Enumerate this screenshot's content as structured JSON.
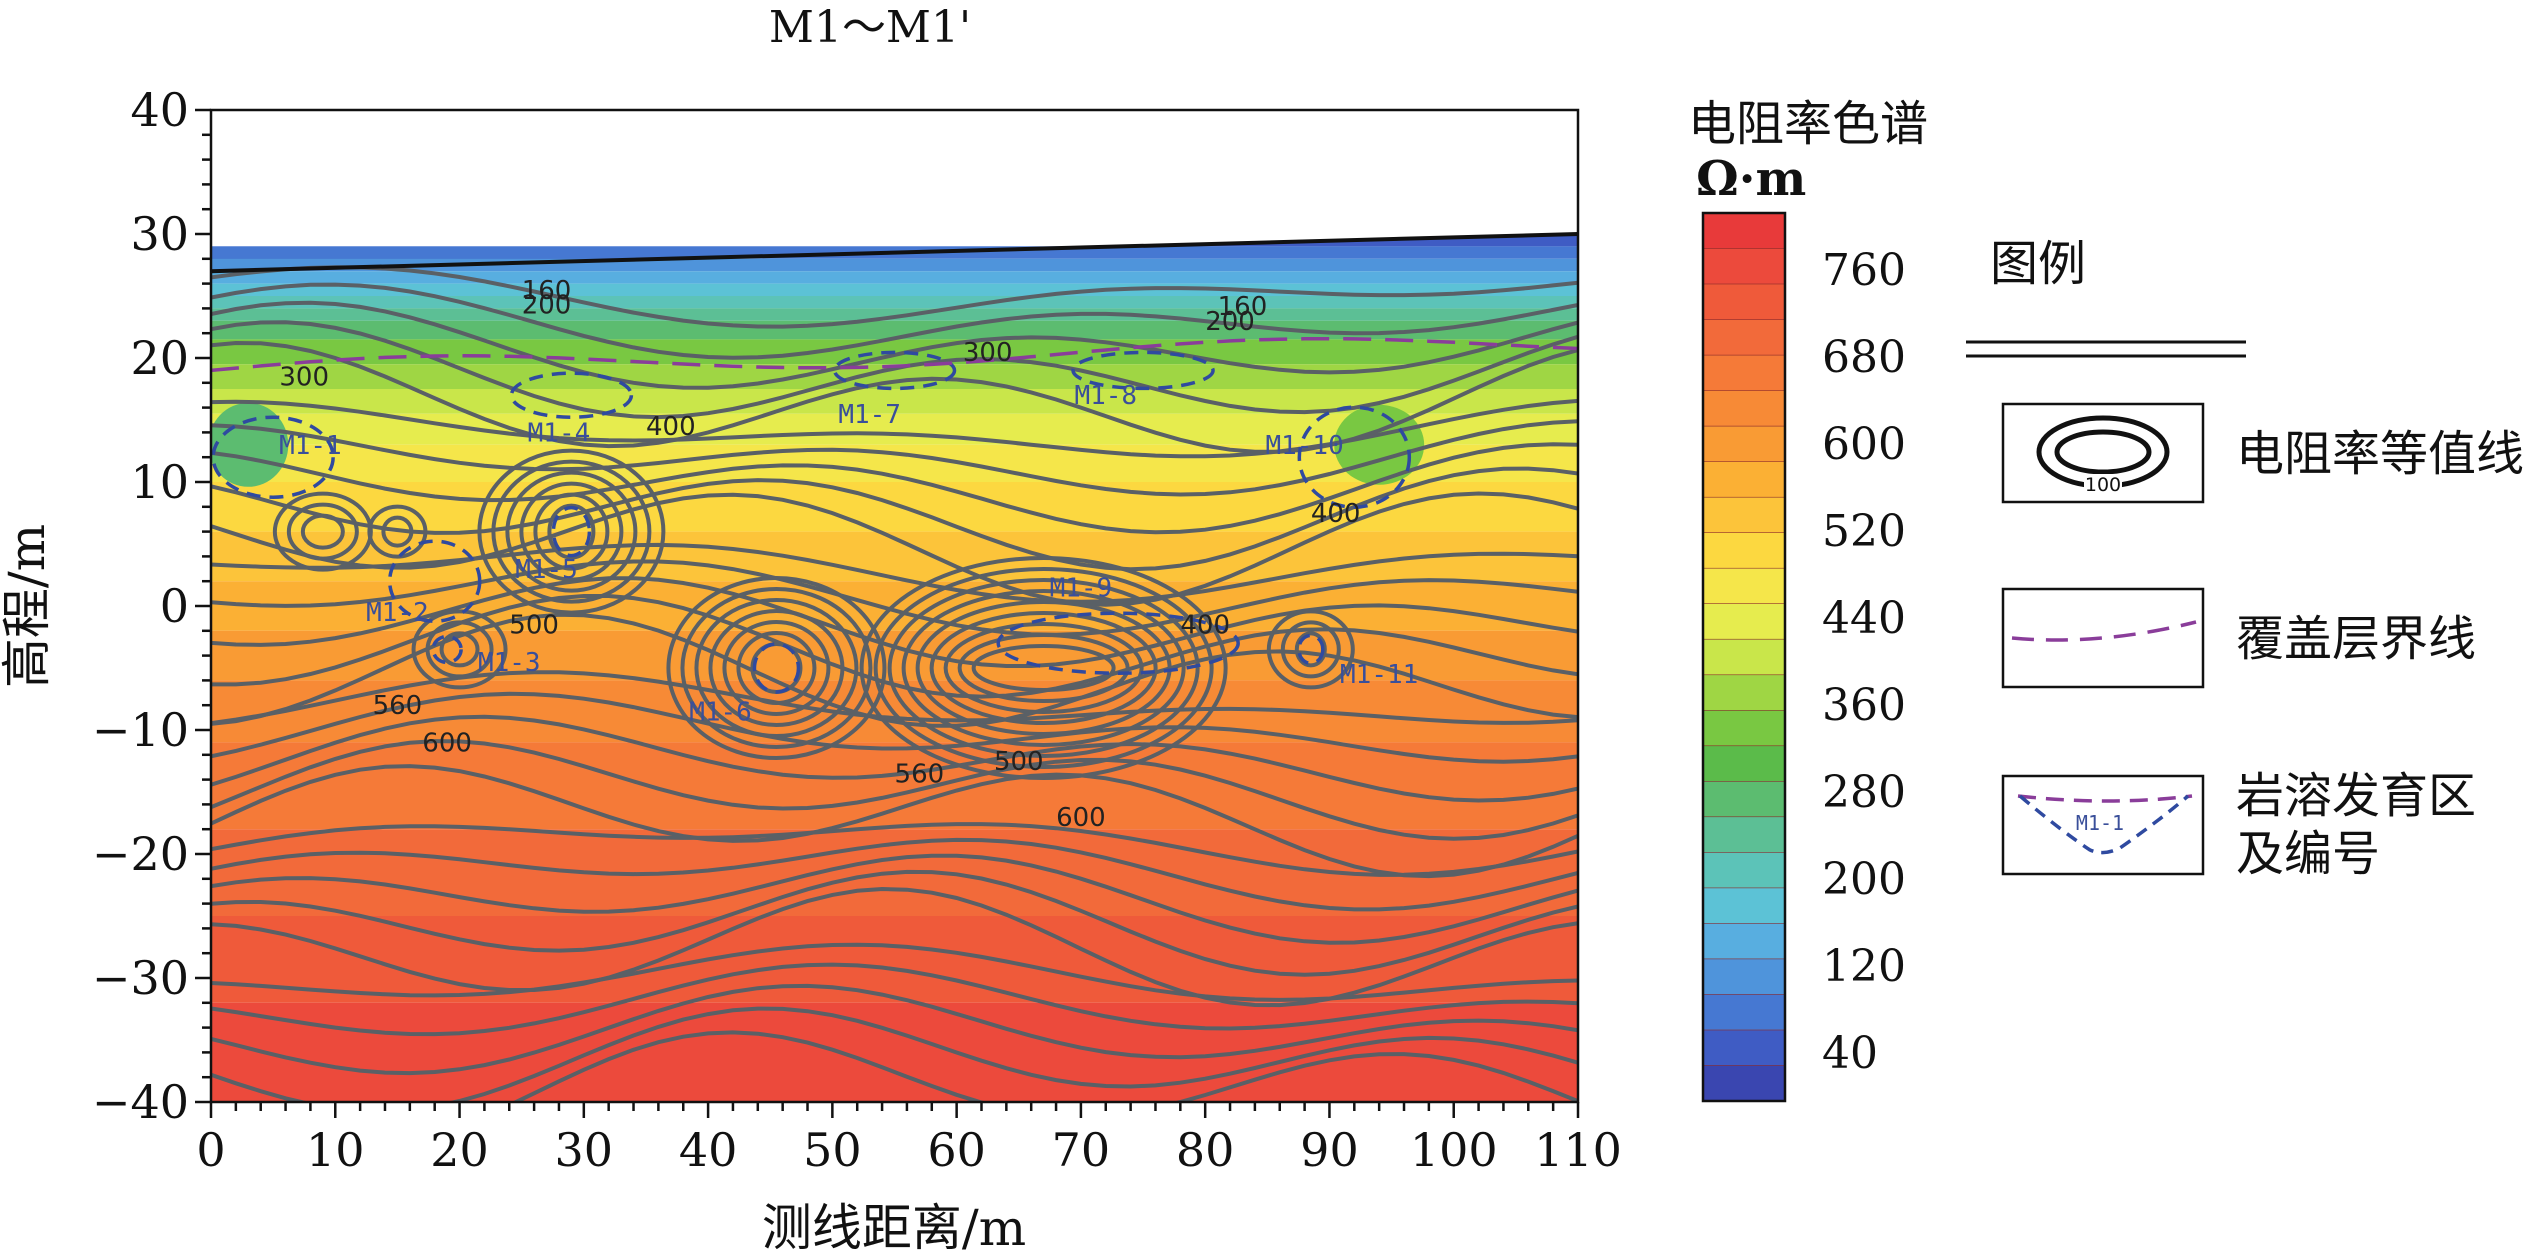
{
  "chart_data": {
    "type": "heatmap",
    "title": "M1～M1'",
    "xlabel": "测线距离/m",
    "ylabel": "高程/m",
    "xlim": [
      0,
      110
    ],
    "ylim": [
      -40,
      40
    ],
    "x_ticks": [
      0,
      10,
      20,
      30,
      40,
      50,
      60,
      70,
      80,
      90,
      100,
      110
    ],
    "y_ticks": [
      40,
      30,
      20,
      10,
      0,
      -10,
      -20,
      -30,
      -40
    ],
    "surface_profile": [
      {
        "x": 0,
        "y": 27
      },
      {
        "x": 110,
        "y": 30
      }
    ],
    "colorbar": {
      "title": "电阻率色谱",
      "unit": "Ω·m",
      "ticks": [
        760,
        680,
        600,
        520,
        440,
        360,
        280,
        200,
        120,
        40
      ],
      "colors": [
        "#e83a3a",
        "#ec4a3c",
        "#ef5a3a",
        "#f26a3a",
        "#f57a38",
        "#f78a36",
        "#f99b34",
        "#fbb034",
        "#fcc43a",
        "#fcd840",
        "#f5e64a",
        "#e6ec4e",
        "#c9e64a",
        "#9fd644",
        "#79c842",
        "#5bbb4a",
        "#5cbc70",
        "#5cbf95",
        "#5cc3b8",
        "#5cc2d6",
        "#58aee0",
        "#4f94db",
        "#4678d2",
        "#3f5cc4",
        "#3a46b0"
      ]
    },
    "contour_labels": [
      {
        "x": 27,
        "y": 25.5,
        "text": "160"
      },
      {
        "x": 27,
        "y": 24.3,
        "text": "200"
      },
      {
        "x": 83,
        "y": 24.2,
        "text": "160"
      },
      {
        "x": 82,
        "y": 23.0,
        "text": "200"
      },
      {
        "x": 7.5,
        "y": 18.5,
        "text": "300"
      },
      {
        "x": 62.5,
        "y": 20.5,
        "text": "300"
      },
      {
        "x": 37,
        "y": 14.5,
        "text": "400"
      },
      {
        "x": 90.5,
        "y": 7.5,
        "text": "400"
      },
      {
        "x": 80,
        "y": -1.5,
        "text": "400"
      },
      {
        "x": 26,
        "y": -1.5,
        "text": "500"
      },
      {
        "x": 65,
        "y": -12.5,
        "text": "500"
      },
      {
        "x": 15,
        "y": -8,
        "text": "560"
      },
      {
        "x": 57,
        "y": -13.5,
        "text": "560"
      },
      {
        "x": 19,
        "y": -11,
        "text": "600"
      },
      {
        "x": 70,
        "y": -17,
        "text": "600"
      }
    ],
    "karst_zones": [
      {
        "label": "M1-1",
        "x": 8,
        "y": 13
      },
      {
        "label": "M1-2",
        "x": 15,
        "y": -0.5
      },
      {
        "label": "M1-3",
        "x": 24,
        "y": -4.5
      },
      {
        "label": "M1-4",
        "x": 28,
        "y": 14
      },
      {
        "label": "M1-5",
        "x": 27,
        "y": 3
      },
      {
        "label": "M1-6",
        "x": 41,
        "y": -8.5
      },
      {
        "label": "M1-7",
        "x": 53,
        "y": 15.5
      },
      {
        "label": "M1-8",
        "x": 72,
        "y": 17
      },
      {
        "label": "M1-9",
        "x": 70,
        "y": 1.5
      },
      {
        "label": "M1-10",
        "x": 88,
        "y": 13
      },
      {
        "label": "M1-11",
        "x": 94,
        "y": -5.5
      }
    ]
  },
  "legend": {
    "title": "图例",
    "items": [
      {
        "label": "电阻率等值线",
        "sample_text": "100"
      },
      {
        "label": "覆盖层界线"
      },
      {
        "label": "岩溶发育区及编号",
        "label_line1": "岩溶发育区",
        "label_line2": "及编号",
        "sample_text": "M1-1"
      }
    ]
  }
}
